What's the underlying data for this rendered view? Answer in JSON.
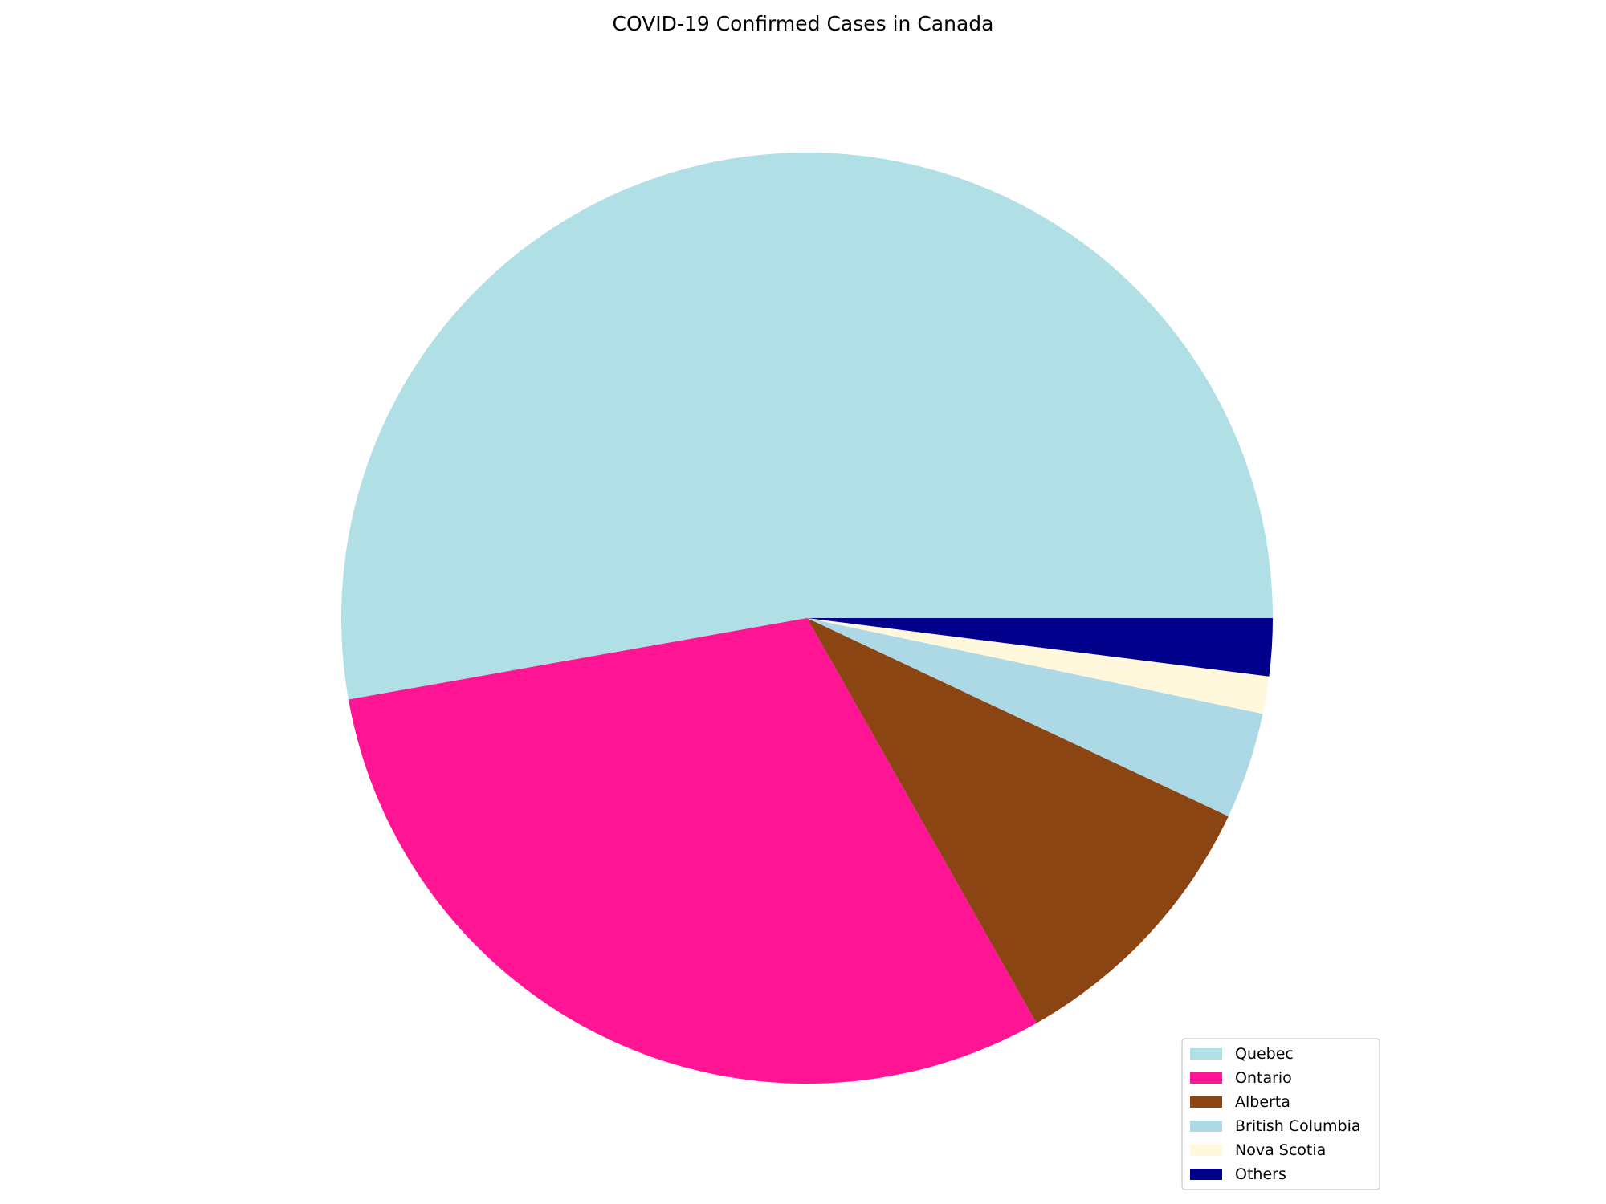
{
  "chart_data": {
    "type": "pie",
    "title": "COVID-19 Confirmed Cases in Canada",
    "categories": [
      "Quebec",
      "Ontario",
      "Alberta",
      "British Columbia",
      "Nova Scotia",
      "Others"
    ],
    "values": [
      52.8,
      30.4,
      9.8,
      3.7,
      1.3,
      2.0
    ],
    "colors": [
      "#b0dfe5",
      "#ff1493",
      "#8b4513",
      "#add8e6",
      "#fff8dc",
      "#00008b"
    ],
    "start_angle_deg": 0,
    "direction": "counterclockwise",
    "legend": {
      "position": "lower-right",
      "entries": [
        "Quebec",
        "Ontario",
        "Alberta",
        "British Columbia",
        "Nova Scotia",
        "Others"
      ]
    }
  }
}
